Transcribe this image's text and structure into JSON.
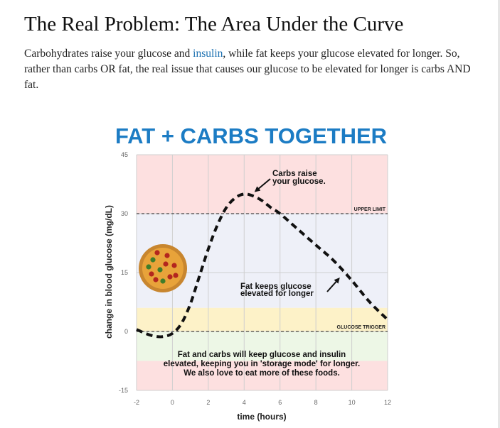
{
  "article": {
    "title": "The Real Problem:  The Area Under the Curve",
    "paragraph_before_link": "Carbohydrates raise your glucose and ",
    "link_text": "insulin",
    "paragraph_after_link": ", while fat keeps your glucose elevated for longer. So, rather than carbs OR fat, the real issue that causes our glucose to be elevated for longer is carbs AND fat."
  },
  "chart_data": {
    "type": "line",
    "title": "FAT + CARBS TOGETHER",
    "xlabel": "time (hours)",
    "ylabel": "change in blood glucose (mg/dL)",
    "xlim": [
      -2,
      12
    ],
    "ylim": [
      -15,
      45
    ],
    "x_ticks": [
      -2,
      0,
      2,
      4,
      6,
      8,
      10,
      12
    ],
    "y_ticks": [
      45,
      30,
      15,
      0,
      -15
    ],
    "grid": true,
    "series": [
      {
        "style": "dashed",
        "color": "#111111",
        "x": [
          -2,
          -1.5,
          -1,
          -0.5,
          0,
          0.5,
          1,
          1.5,
          2,
          2.5,
          3,
          3.5,
          4,
          4.5,
          5,
          5.5,
          6,
          7,
          8,
          9,
          10,
          11,
          12
        ],
        "y": [
          0.5,
          -0.5,
          -1.2,
          -1.3,
          -0.5,
          2.0,
          7.0,
          14.0,
          21.0,
          27.0,
          31.5,
          34.0,
          35.0,
          34.5,
          33.3,
          31.5,
          30.0,
          26.0,
          22.0,
          18.0,
          13.0,
          7.5,
          3.0
        ]
      }
    ],
    "bands": [
      {
        "from": 30,
        "to": 45,
        "color": "#fde0e0"
      },
      {
        "from": 6,
        "to": 30,
        "color": "#eef0f8"
      },
      {
        "from": 0,
        "to": 6,
        "color": "#fdf2c8"
      },
      {
        "from": -7.5,
        "to": 0,
        "color": "#edf7e6"
      },
      {
        "from": -15,
        "to": -7.5,
        "color": "#fde0e0"
      }
    ],
    "reference_lines": [
      {
        "y": 30,
        "label": "UPPER LIMIT"
      },
      {
        "y": 0,
        "label": "GLUCOSE TRIGGER"
      }
    ],
    "annotations": [
      {
        "lines": [
          "Carbs raise",
          "your glucose."
        ],
        "arrow_to": [
          4,
          35
        ]
      },
      {
        "lines": [
          "Fat keeps glucose",
          "elevated for longer"
        ],
        "arrow_to": [
          9.6,
          14
        ]
      },
      {
        "lines": [
          "Fat and carbs will keep glucose and insulin",
          "elevated, keeping you in 'storage mode' for longer.",
          "We also love to eat more of these foods."
        ]
      }
    ],
    "colors": {
      "title": "#1c7cc4",
      "grid": "#cfcfcf",
      "axis_text": "#666666"
    }
  }
}
